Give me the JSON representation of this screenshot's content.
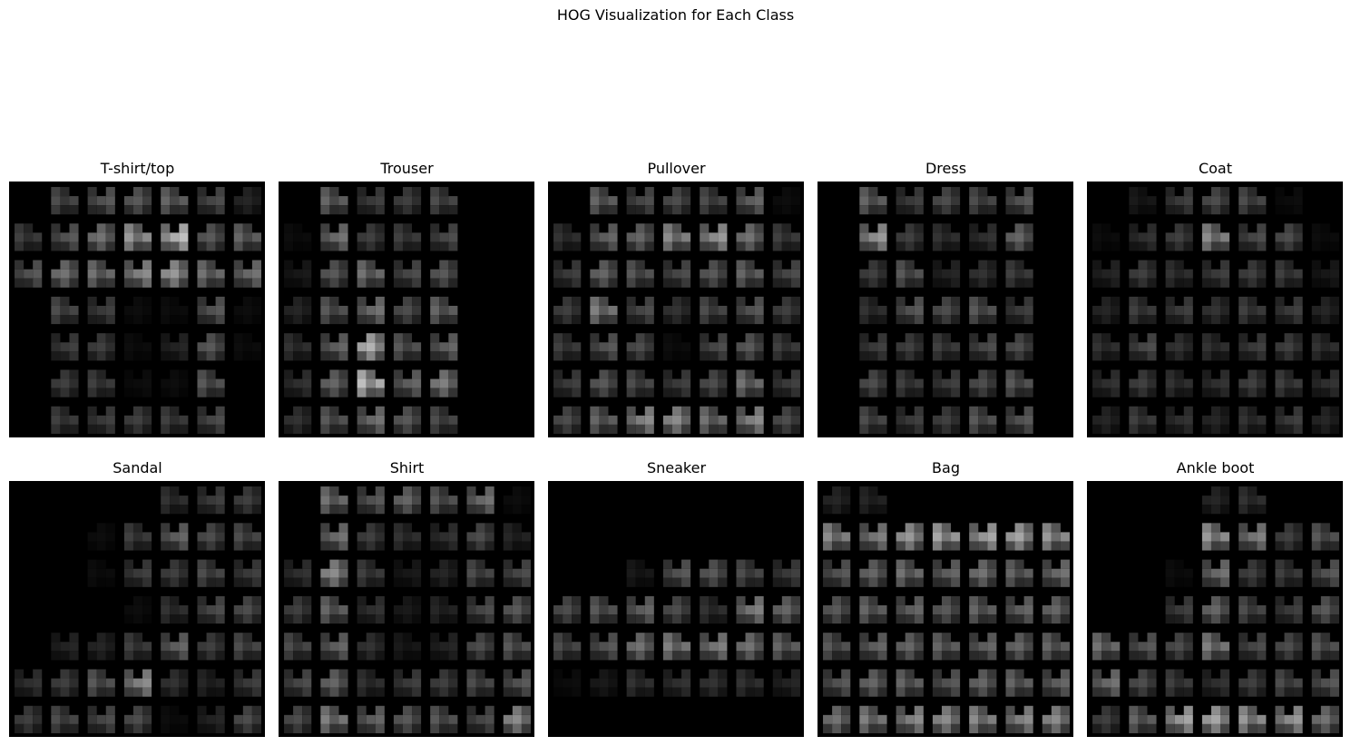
{
  "figure": {
    "title": "HOG Visualization for Each Class"
  },
  "chart_data": {
    "type": "heatmap",
    "colormap": "gray",
    "axes_visible": false,
    "grid_cells": 7,
    "panels": [
      {
        "title": "T-shirt/top",
        "cells": [
          [
            0.0,
            0.3,
            0.35,
            0.35,
            0.4,
            0.3,
            0.15
          ],
          [
            0.25,
            0.35,
            0.45,
            0.6,
            0.75,
            0.35,
            0.4
          ],
          [
            0.35,
            0.45,
            0.45,
            0.55,
            0.6,
            0.45,
            0.45
          ],
          [
            0.0,
            0.3,
            0.25,
            0.05,
            0.05,
            0.35,
            0.05
          ],
          [
            0.0,
            0.25,
            0.25,
            0.05,
            0.15,
            0.35,
            0.05
          ],
          [
            0.0,
            0.25,
            0.25,
            0.05,
            0.05,
            0.35,
            0.0
          ],
          [
            0.0,
            0.25,
            0.25,
            0.25,
            0.25,
            0.3,
            0.0
          ]
        ]
      },
      {
        "title": "Trouser",
        "cells": [
          [
            0.0,
            0.4,
            0.25,
            0.25,
            0.3,
            0.0,
            0.0
          ],
          [
            0.05,
            0.45,
            0.25,
            0.25,
            0.3,
            0.0,
            0.0
          ],
          [
            0.1,
            0.35,
            0.45,
            0.3,
            0.35,
            0.0,
            0.0
          ],
          [
            0.15,
            0.35,
            0.45,
            0.3,
            0.4,
            0.0,
            0.0
          ],
          [
            0.2,
            0.4,
            0.7,
            0.35,
            0.4,
            0.0,
            0.0
          ],
          [
            0.2,
            0.4,
            0.75,
            0.4,
            0.5,
            0.0,
            0.0
          ],
          [
            0.2,
            0.35,
            0.45,
            0.35,
            0.3,
            0.0,
            0.0
          ]
        ]
      },
      {
        "title": "Pullover",
        "cells": [
          [
            0.0,
            0.4,
            0.3,
            0.3,
            0.3,
            0.4,
            0.05
          ],
          [
            0.2,
            0.4,
            0.4,
            0.55,
            0.6,
            0.45,
            0.25
          ],
          [
            0.25,
            0.4,
            0.35,
            0.3,
            0.35,
            0.4,
            0.3
          ],
          [
            0.25,
            0.5,
            0.3,
            0.2,
            0.3,
            0.35,
            0.25
          ],
          [
            0.25,
            0.35,
            0.3,
            0.05,
            0.3,
            0.35,
            0.25
          ],
          [
            0.25,
            0.35,
            0.3,
            0.25,
            0.3,
            0.45,
            0.25
          ],
          [
            0.3,
            0.4,
            0.55,
            0.55,
            0.45,
            0.55,
            0.3
          ]
        ]
      },
      {
        "title": "Dress",
        "cells": [
          [
            0.0,
            0.4,
            0.25,
            0.3,
            0.3,
            0.35,
            0.0
          ],
          [
            0.0,
            0.6,
            0.25,
            0.2,
            0.2,
            0.4,
            0.0
          ],
          [
            0.0,
            0.25,
            0.35,
            0.15,
            0.2,
            0.25,
            0.0
          ],
          [
            0.0,
            0.2,
            0.35,
            0.3,
            0.35,
            0.25,
            0.0
          ],
          [
            0.0,
            0.25,
            0.25,
            0.25,
            0.3,
            0.3,
            0.0
          ],
          [
            0.0,
            0.3,
            0.25,
            0.25,
            0.3,
            0.35,
            0.0
          ],
          [
            0.0,
            0.3,
            0.25,
            0.25,
            0.35,
            0.35,
            0.0
          ]
        ]
      },
      {
        "title": "Coat",
        "cells": [
          [
            0.0,
            0.1,
            0.25,
            0.3,
            0.3,
            0.05,
            0.0
          ],
          [
            0.05,
            0.2,
            0.25,
            0.55,
            0.3,
            0.3,
            0.05
          ],
          [
            0.15,
            0.25,
            0.2,
            0.25,
            0.25,
            0.25,
            0.1
          ],
          [
            0.15,
            0.25,
            0.25,
            0.2,
            0.25,
            0.25,
            0.15
          ],
          [
            0.2,
            0.3,
            0.2,
            0.2,
            0.25,
            0.25,
            0.2
          ],
          [
            0.2,
            0.25,
            0.2,
            0.2,
            0.25,
            0.25,
            0.2
          ],
          [
            0.15,
            0.25,
            0.2,
            0.15,
            0.2,
            0.25,
            0.15
          ]
        ]
      },
      {
        "title": "Sandal",
        "cells": [
          [
            0.0,
            0.0,
            0.0,
            0.0,
            0.2,
            0.25,
            0.25
          ],
          [
            0.0,
            0.0,
            0.05,
            0.25,
            0.4,
            0.3,
            0.3
          ],
          [
            0.0,
            0.0,
            0.05,
            0.25,
            0.25,
            0.3,
            0.25
          ],
          [
            0.0,
            0.0,
            0.0,
            0.05,
            0.2,
            0.3,
            0.3
          ],
          [
            0.0,
            0.15,
            0.15,
            0.25,
            0.4,
            0.25,
            0.3
          ],
          [
            0.2,
            0.25,
            0.35,
            0.55,
            0.2,
            0.15,
            0.25
          ],
          [
            0.25,
            0.3,
            0.3,
            0.3,
            0.05,
            0.15,
            0.3
          ]
        ]
      },
      {
        "title": "Shirt",
        "cells": [
          [
            0.0,
            0.45,
            0.35,
            0.4,
            0.35,
            0.45,
            0.05
          ],
          [
            0.0,
            0.45,
            0.25,
            0.2,
            0.2,
            0.3,
            0.15
          ],
          [
            0.2,
            0.55,
            0.25,
            0.1,
            0.15,
            0.3,
            0.3
          ],
          [
            0.25,
            0.4,
            0.2,
            0.1,
            0.15,
            0.3,
            0.35
          ],
          [
            0.3,
            0.4,
            0.2,
            0.1,
            0.15,
            0.3,
            0.35
          ],
          [
            0.3,
            0.4,
            0.2,
            0.25,
            0.25,
            0.3,
            0.35
          ],
          [
            0.3,
            0.5,
            0.4,
            0.35,
            0.35,
            0.3,
            0.55
          ]
        ]
      },
      {
        "title": "Sneaker",
        "cells": [
          [
            0.0,
            0.0,
            0.0,
            0.0,
            0.0,
            0.0,
            0.0
          ],
          [
            0.0,
            0.0,
            0.0,
            0.0,
            0.0,
            0.0,
            0.0
          ],
          [
            0.0,
            0.0,
            0.1,
            0.35,
            0.35,
            0.3,
            0.25
          ],
          [
            0.3,
            0.35,
            0.4,
            0.3,
            0.2,
            0.5,
            0.4
          ],
          [
            0.3,
            0.35,
            0.45,
            0.5,
            0.5,
            0.45,
            0.4
          ],
          [
            0.05,
            0.1,
            0.2,
            0.2,
            0.2,
            0.2,
            0.15
          ],
          [
            0.0,
            0.0,
            0.0,
            0.0,
            0.0,
            0.0,
            0.0
          ]
        ]
      },
      {
        "title": "Bag",
        "cells": [
          [
            0.15,
            0.15,
            0.0,
            0.0,
            0.0,
            0.0,
            0.0
          ],
          [
            0.55,
            0.5,
            0.6,
            0.65,
            0.65,
            0.65,
            0.6
          ],
          [
            0.35,
            0.4,
            0.45,
            0.4,
            0.45,
            0.4,
            0.45
          ],
          [
            0.35,
            0.4,
            0.4,
            0.35,
            0.4,
            0.4,
            0.4
          ],
          [
            0.35,
            0.4,
            0.4,
            0.4,
            0.4,
            0.4,
            0.4
          ],
          [
            0.35,
            0.4,
            0.4,
            0.35,
            0.4,
            0.4,
            0.4
          ],
          [
            0.45,
            0.5,
            0.55,
            0.55,
            0.55,
            0.55,
            0.55
          ]
        ]
      },
      {
        "title": "Ankle boot",
        "cells": [
          [
            0.0,
            0.0,
            0.0,
            0.15,
            0.2,
            0.0,
            0.0
          ],
          [
            0.0,
            0.0,
            0.0,
            0.6,
            0.5,
            0.25,
            0.35
          ],
          [
            0.0,
            0.0,
            0.05,
            0.45,
            0.25,
            0.25,
            0.35
          ],
          [
            0.0,
            0.0,
            0.25,
            0.4,
            0.3,
            0.25,
            0.35
          ],
          [
            0.45,
            0.35,
            0.3,
            0.5,
            0.3,
            0.3,
            0.35
          ],
          [
            0.45,
            0.3,
            0.25,
            0.2,
            0.25,
            0.3,
            0.35
          ],
          [
            0.25,
            0.4,
            0.65,
            0.65,
            0.6,
            0.6,
            0.45
          ]
        ]
      }
    ]
  }
}
